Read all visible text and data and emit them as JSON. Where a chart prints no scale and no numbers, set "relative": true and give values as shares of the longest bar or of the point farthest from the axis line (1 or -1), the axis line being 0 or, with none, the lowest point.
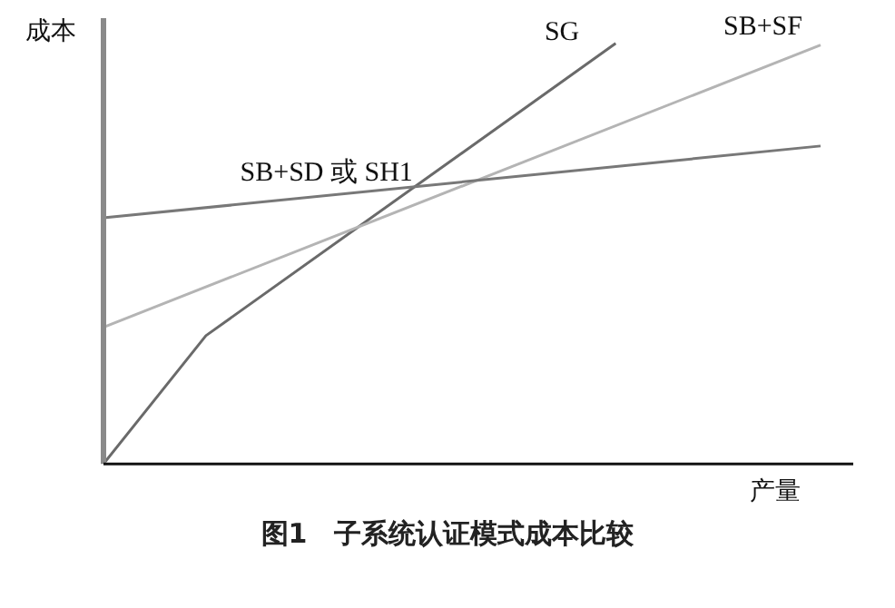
{
  "chart_data": {
    "type": "line",
    "title": "图1　子系统认证模式成本比较",
    "xlabel": "产量",
    "ylabel": "成本",
    "relative": true,
    "categories": [
      null,
      null,
      null,
      null,
      null,
      null,
      null,
      null
    ],
    "grid": false,
    "legend": false,
    "marker": "none",
    "line_style": "solid",
    "series": [
      {
        "name": "SB+SD 或 SH1",
        "color": "#787878",
        "values": [
          0.585,
          null,
          null,
          null,
          null,
          null,
          null,
          0.756
        ]
      },
      {
        "name": "SB+SF",
        "color": "#b4b4b4",
        "values": [
          0.325,
          null,
          null,
          null,
          null,
          null,
          null,
          0.996
        ]
      },
      {
        "name": "SG",
        "color": "#6a6a6a",
        "values": [
          0,
          0.305,
          null,
          null,
          null,
          1,
          null,
          null
        ]
      }
    ]
  }
}
